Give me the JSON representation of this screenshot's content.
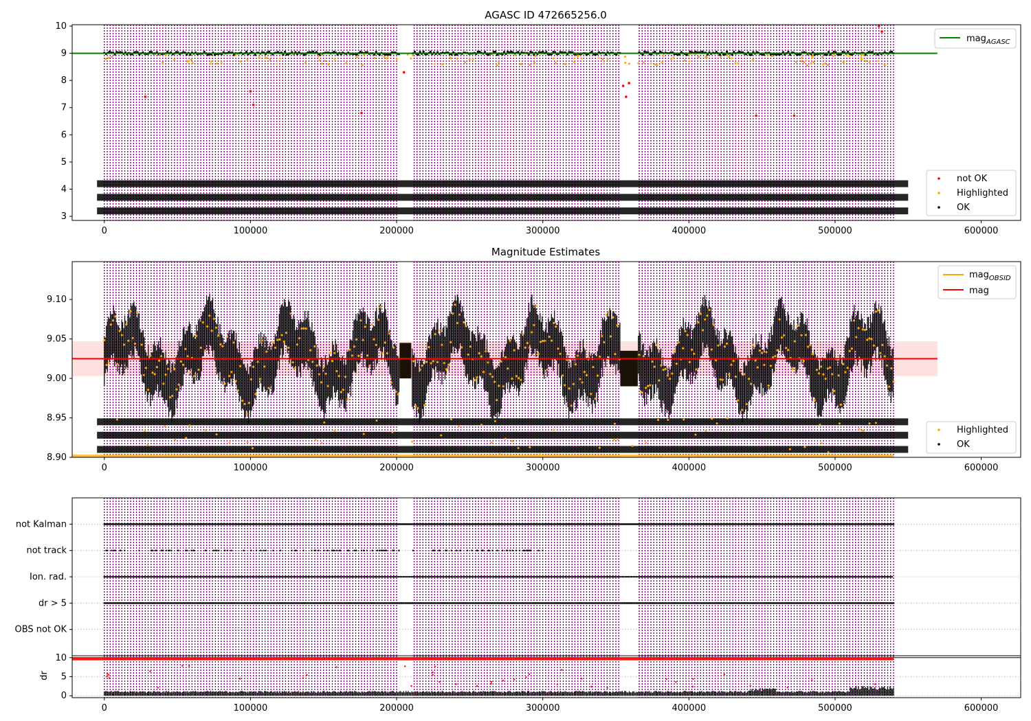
{
  "chart_data": [
    {
      "id": "panel1",
      "type": "scatter",
      "title": "AGASC ID 472665256.0",
      "xlim": [
        -22000,
        627000
      ],
      "ylim": [
        2.85,
        10.05
      ],
      "xticks": [
        "0",
        "100000",
        "200000",
        "300000",
        "400000",
        "500000",
        "600000"
      ],
      "yticks": [
        "3",
        "4",
        "5",
        "6",
        "7",
        "8",
        "9",
        "10"
      ],
      "reference_lines": [
        {
          "name": "mag_AGASC",
          "y": 9.0,
          "color": "#008000"
        }
      ],
      "legends": [
        {
          "position": "top-right",
          "entries": [
            {
              "label": "mag",
              "sub": "AGASC",
              "kind": "line",
              "color": "#008000"
            }
          ]
        },
        {
          "position": "bottom-right",
          "entries": [
            {
              "label": "not OK",
              "kind": "dot",
              "color": "#ff0000"
            },
            {
              "label": "Highlighted",
              "kind": "dot",
              "color": "#ffa500"
            },
            {
              "label": "OK",
              "kind": "dot",
              "color": "#000000"
            }
          ]
        }
      ],
      "series": [
        {
          "name": "OK",
          "color": "#000000",
          "band": [
            8.96,
            9.06
          ],
          "shape": "flat"
        },
        {
          "name": "Highlighted",
          "color": "#ffa500"
        },
        {
          "name": "not OK",
          "color": "#ff0000",
          "points": [
            [
              28000,
              7.4
            ],
            [
              100000,
              7.6
            ],
            [
              102000,
              7.1
            ],
            [
              176000,
              6.8
            ],
            [
              205000,
              8.3
            ],
            [
              355000,
              7.8
            ],
            [
              359000,
              7.9
            ],
            [
              357000,
              7.4
            ],
            [
              446000,
              6.7
            ],
            [
              472000,
              6.7
            ],
            [
              530000,
              10.0
            ],
            [
              532000,
              9.8
            ]
          ]
        }
      ],
      "obsid_label_rows": [
        4.2,
        3.7,
        3.2
      ]
    },
    {
      "id": "panel2",
      "type": "scatter",
      "title": "Magnitude Estimates",
      "xlim": [
        -22000,
        627000
      ],
      "ylim": [
        8.9,
        9.148
      ],
      "xticks": [
        "0",
        "100000",
        "200000",
        "300000",
        "400000",
        "500000",
        "600000"
      ],
      "yticks": [
        "8.90",
        "8.95",
        "9.00",
        "9.05",
        "9.10"
      ],
      "reference_lines": [
        {
          "name": "mag",
          "y": 9.025,
          "color": "#ff0000",
          "band": [
            9.003,
            9.047
          ]
        }
      ],
      "legends": [
        {
          "position": "top-right",
          "entries": [
            {
              "label": "mag",
              "sub": "OBSID",
              "kind": "line",
              "color": "#ffa500"
            },
            {
              "label": "mag",
              "kind": "line",
              "color": "#ff0000"
            }
          ]
        },
        {
          "position": "bottom-right",
          "entries": [
            {
              "label": "Highlighted",
              "kind": "dot",
              "color": "#ffa500"
            },
            {
              "label": "OK",
              "kind": "dot",
              "color": "#000000"
            }
          ]
        }
      ],
      "series": [
        {
          "name": "OK",
          "color": "#000000",
          "band": [
            8.96,
            9.09
          ],
          "shape": "wavy"
        },
        {
          "name": "Highlighted",
          "color": "#ffa500"
        }
      ],
      "obsid_label_rows": [
        8.945,
        8.928,
        8.91
      ]
    },
    {
      "id": "panel3",
      "type": "scatter",
      "xlim": [
        -22000,
        627000
      ],
      "ylim": [
        0,
        6
      ],
      "xticks": [],
      "yticks": [
        "OBS not OK",
        "dr > 5",
        "Ion. rad.",
        "not track",
        "not Kalman"
      ],
      "series": [
        {
          "name": "flags",
          "color": "#000000"
        }
      ]
    },
    {
      "id": "panel4",
      "type": "scatter",
      "ylabel": "dr",
      "xlim": [
        -22000,
        627000
      ],
      "ylim": [
        -0.5,
        10.5
      ],
      "xticks": [
        "0",
        "100000",
        "200000",
        "300000",
        "400000",
        "500000",
        "600000"
      ],
      "yticks": [
        "0",
        "5",
        "10"
      ],
      "reference_lines": [
        {
          "name": "threshold",
          "y": 10,
          "color": "#000000"
        }
      ],
      "series": [
        {
          "name": "OK",
          "color": "#000000",
          "band": [
            0,
            2.5
          ]
        },
        {
          "name": "not OK",
          "color": "#ff0000",
          "y": 9.7
        }
      ]
    }
  ],
  "colors": {
    "obsid_lines": "#800080",
    "ok": "#000000",
    "highlighted": "#ffa500",
    "not_ok": "#ff0000",
    "agasc_line": "#008000"
  }
}
